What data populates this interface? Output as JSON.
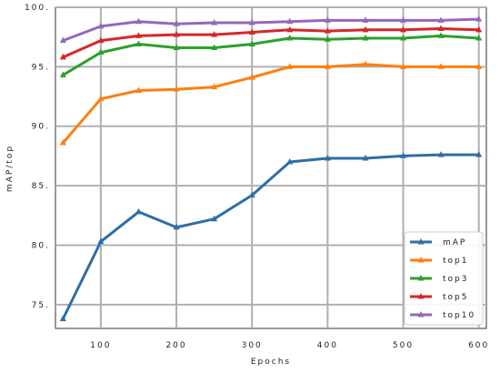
{
  "chart_data": {
    "type": "line",
    "title": "",
    "xlabel": "Epochs",
    "ylabel": "mAP/top",
    "xlim": [
      40,
      610
    ],
    "ylim": [
      73,
      100
    ],
    "xticks": [
      100,
      200,
      300,
      400,
      500,
      600
    ],
    "yticks": [
      75,
      80,
      85,
      90,
      95,
      100
    ],
    "xtick_labels": [
      "100",
      "200",
      "300",
      "400",
      "500",
      "600"
    ],
    "ytick_labels": [
      "75.",
      "80.",
      "85.",
      "90.",
      "95.",
      "100."
    ],
    "grid": true,
    "legend_position": "bottom-right",
    "x": [
      50,
      100,
      150,
      200,
      250,
      300,
      350,
      400,
      450,
      500,
      550,
      600
    ],
    "series": [
      {
        "name": "mAP",
        "color": "#2e6ea6",
        "values": [
          73.8,
          80.3,
          82.8,
          81.5,
          82.2,
          84.2,
          87.0,
          87.3,
          87.3,
          87.5,
          87.6,
          87.6
        ]
      },
      {
        "name": "top1",
        "color": "#ff7f0e",
        "values": [
          88.6,
          92.3,
          93.0,
          93.1,
          93.3,
          94.1,
          95.0,
          95.0,
          95.2,
          95.0,
          95.0,
          95.0
        ]
      },
      {
        "name": "top3",
        "color": "#2ca02c",
        "values": [
          94.3,
          96.2,
          96.9,
          96.6,
          96.6,
          96.9,
          97.4,
          97.3,
          97.4,
          97.4,
          97.6,
          97.4
        ]
      },
      {
        "name": "top5",
        "color": "#d62728",
        "values": [
          95.8,
          97.2,
          97.6,
          97.7,
          97.7,
          97.9,
          98.1,
          98.0,
          98.1,
          98.1,
          98.2,
          98.1
        ]
      },
      {
        "name": "top10",
        "color": "#9467bd",
        "values": [
          97.2,
          98.4,
          98.8,
          98.6,
          98.7,
          98.7,
          98.8,
          98.9,
          98.9,
          98.9,
          98.9,
          99.0
        ]
      }
    ]
  }
}
